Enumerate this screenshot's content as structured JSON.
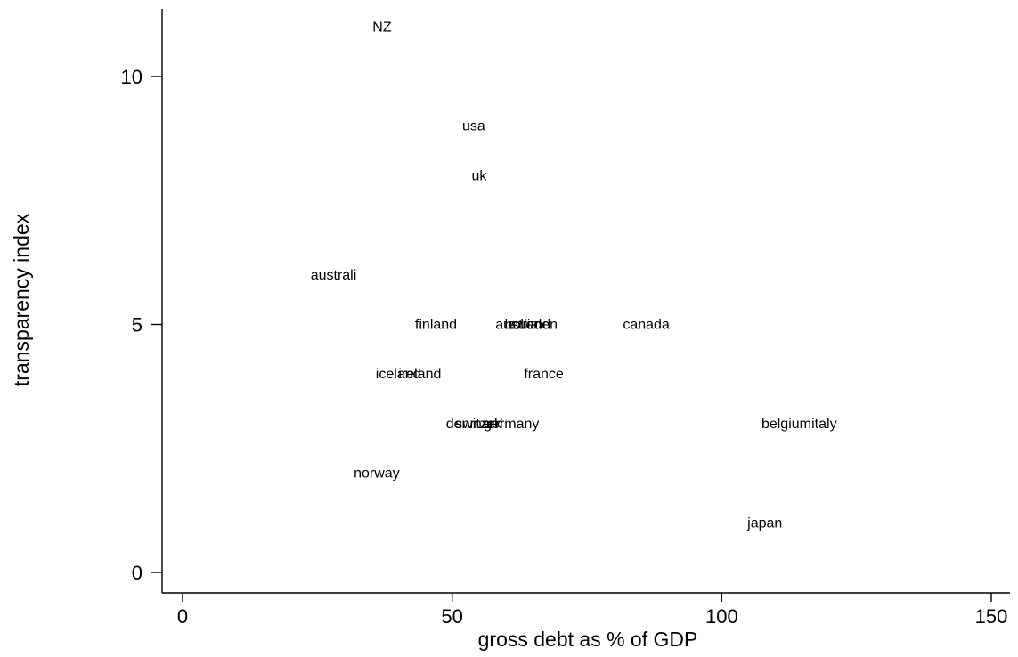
{
  "chart_data": {
    "type": "scatter",
    "title": "",
    "xlabel": "gross debt as % of GDP",
    "ylabel": "transparency index",
    "xlim": [
      -4,
      154
    ],
    "ylim": [
      -0.5,
      11.5
    ],
    "xticks": [
      0,
      50,
      100,
      150
    ],
    "yticks": [
      0,
      5,
      10
    ],
    "grid": false,
    "marker": "country label only",
    "points": [
      {
        "label": "NZ",
        "x": 37,
        "y": 11
      },
      {
        "label": "usa",
        "x": 54,
        "y": 9
      },
      {
        "label": "uk",
        "x": 55,
        "y": 8
      },
      {
        "label": "australi",
        "x": 28,
        "y": 6
      },
      {
        "label": "finland",
        "x": 47,
        "y": 5
      },
      {
        "label": "austria",
        "x": 62,
        "y": 5
      },
      {
        "label": "holland",
        "x": 64,
        "y": 5
      },
      {
        "label": "sweden",
        "x": 65,
        "y": 5
      },
      {
        "label": "canada",
        "x": 86,
        "y": 5
      },
      {
        "label": "iceland",
        "x": 40,
        "y": 4
      },
      {
        "label": "ireland",
        "x": 44,
        "y": 4
      },
      {
        "label": "france",
        "x": 67,
        "y": 4
      },
      {
        "label": "denmark",
        "x": 54,
        "y": 3
      },
      {
        "label": "switzerl",
        "x": 55,
        "y": 3
      },
      {
        "label": "germany",
        "x": 61,
        "y": 3
      },
      {
        "label": "belgium",
        "x": 112,
        "y": 3
      },
      {
        "label": "italy",
        "x": 119,
        "y": 3
      },
      {
        "label": "norway",
        "x": 36,
        "y": 2
      },
      {
        "label": "japan",
        "x": 108,
        "y": 1
      }
    ]
  }
}
